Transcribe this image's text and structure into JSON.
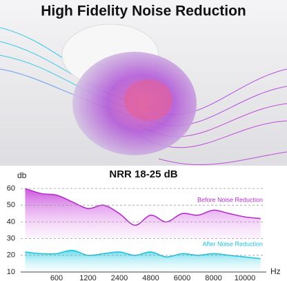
{
  "image_title": "High Fidelity Noise Reduction",
  "chart_data": {
    "type": "area",
    "title": "NRR 18-25 dB",
    "y_label": "db",
    "x_label": "Hz",
    "categories": [
      null,
      null,
      "600",
      null,
      "1200",
      null,
      "2400",
      null,
      "4800",
      null,
      "6000",
      null,
      "8000",
      null,
      "10000",
      null
    ],
    "series": [
      {
        "name": "Before Noise Reduction",
        "color": "#b52fcc",
        "values": [
          60,
          57,
          56,
          52,
          48,
          50,
          45,
          38,
          44,
          40,
          45,
          44,
          47,
          45,
          43,
          42
        ]
      },
      {
        "name": "After Noise Reduction",
        "color": "#1fc3dc",
        "values": [
          22,
          21,
          21,
          23,
          20,
          21,
          22,
          20,
          22,
          19,
          21,
          20,
          21,
          20,
          19,
          18
        ]
      }
    ],
    "ylim": [
      10,
      60
    ],
    "yticks": [
      60,
      50,
      40,
      30,
      20,
      10
    ],
    "grid": true
  }
}
